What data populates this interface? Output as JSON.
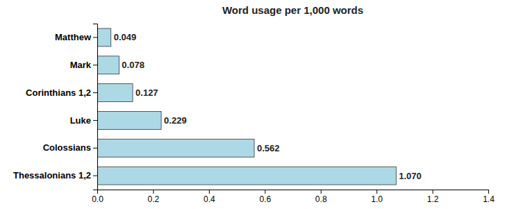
{
  "chart_data": {
    "type": "bar",
    "orientation": "horizontal",
    "title": "Word usage per 1,000 words",
    "categories": [
      "Thessalonians 1,2",
      "Colossians",
      "Luke",
      "Corinthians 1,2",
      "Mark",
      "Matthew"
    ],
    "values": [
      1.07,
      0.562,
      0.229,
      0.127,
      0.078,
      0.049
    ],
    "value_labels": [
      "1.070",
      "0.562",
      "0.229",
      "0.127",
      "0.078",
      "0.049"
    ],
    "data_labels": true,
    "color": "#add8e6",
    "xlim": [
      0,
      1.4
    ],
    "xticks": [
      {
        "value": 0.0,
        "label": "0.0"
      },
      0.2,
      0.4,
      0.6,
      0.8,
      {
        "value": 1.0,
        "label": "1.0"
      },
      1.2,
      1.4
    ],
    "grid": false
  }
}
